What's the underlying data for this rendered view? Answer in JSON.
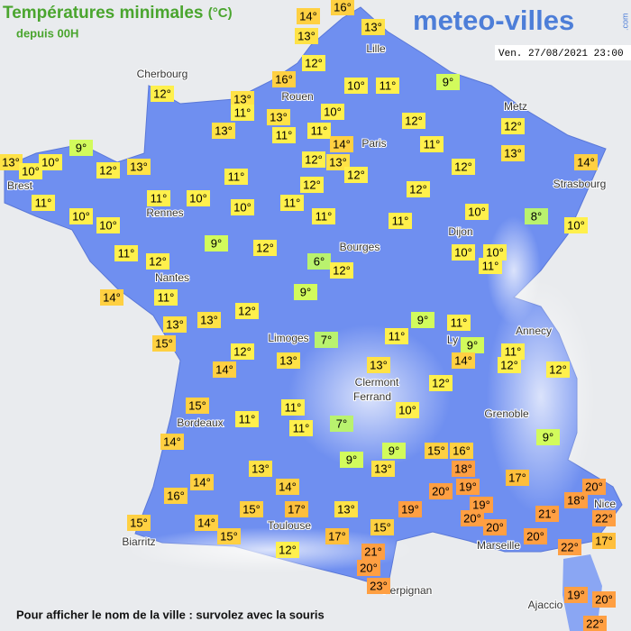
{
  "header": {
    "title": "Températures minimales",
    "unit": "(°C)",
    "subtitle": "depuis 00H",
    "logo": "meteo-villes",
    "logo_suffix": ".com",
    "timestamp": "Ven. 27/08/2021 23:00"
  },
  "cities": [
    "Cherbourg",
    "Rouen",
    "Lille",
    "Paris",
    "Metz",
    "Strasbourg",
    "Brest",
    "Rennes",
    "Dijon",
    "Bourges",
    "Nantes",
    "Annecy",
    "Limoges",
    "Ly",
    "Clermont",
    "Ferrand",
    "Grenoble",
    "Bordeaux",
    "Toulouse",
    "Nice",
    "Biarritz",
    "Marseille",
    "Perpignan",
    "Ajaccio"
  ],
  "readings": [
    "14°",
    "16°",
    "13°",
    "13°",
    "12°",
    "9°",
    "16°",
    "10°",
    "11°",
    "12°",
    "13°",
    "11°",
    "13°",
    "10°",
    "12°",
    "12°",
    "13°",
    "11°",
    "11°",
    "14°",
    "11°",
    "13°",
    "9°",
    "13°",
    "10°",
    "10°",
    "12°",
    "13°",
    "12°",
    "13°",
    "12°",
    "12°",
    "14°",
    "11°",
    "11°",
    "11°",
    "10°",
    "12°",
    "12°",
    "10°",
    "11°",
    "10°",
    "10°",
    "11°",
    "11°",
    "10°",
    "8°",
    "10°",
    "9°",
    "12°",
    "11°",
    "12°",
    "6°",
    "12°",
    "10°",
    "10°",
    "11°",
    "14°",
    "11°",
    "9°",
    "12°",
    "13°",
    "13°",
    "7°",
    "9°",
    "11°",
    "15°",
    "11°",
    "9°",
    "11°",
    "12°",
    "13°",
    "14°",
    "14°",
    "12°",
    "12°",
    "13°",
    "12°",
    "15°",
    "10°",
    "11°",
    "11°",
    "11°",
    "7°",
    "14°",
    "9°",
    "9°",
    "15°",
    "16°",
    "9°",
    "13°",
    "18°",
    "17°",
    "13°",
    "14°",
    "14°",
    "20°",
    "19°",
    "20°",
    "16°",
    "19°",
    "18°",
    "15°",
    "17°",
    "13°",
    "19°",
    "20°",
    "21°",
    "22°",
    "15°",
    "14°",
    "15°",
    "20°",
    "15°",
    "17°",
    "20°",
    "22°",
    "17°",
    "12°",
    "21°",
    "20°",
    "23°",
    "19°",
    "20°",
    "22°"
  ],
  "footer": "Pour afficher le nom de la ville : survolez avec la souris"
}
